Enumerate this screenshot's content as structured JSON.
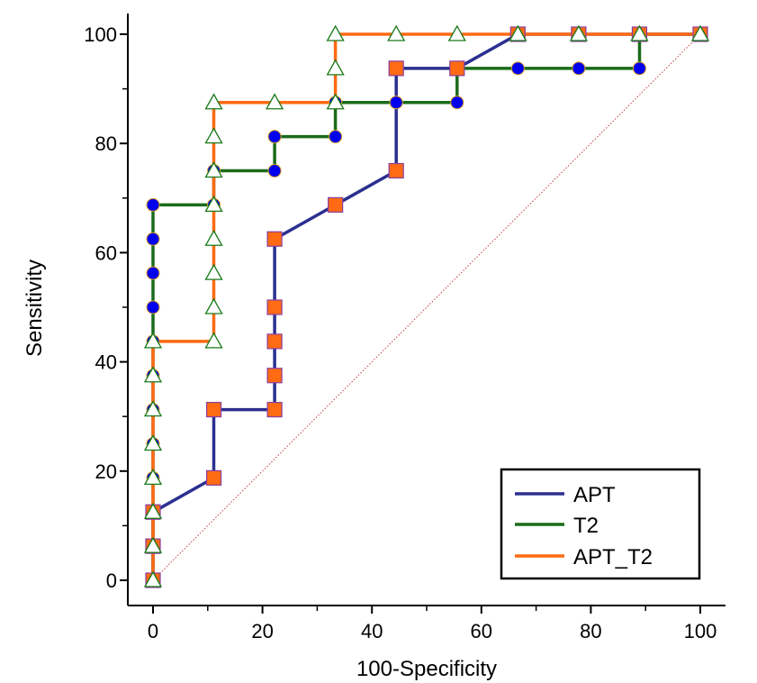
{
  "chart_data": {
    "type": "line",
    "title": "",
    "xlabel": "100-Specificity",
    "ylabel": "Sensitivity",
    "xlim": [
      0,
      100
    ],
    "ylim": [
      0,
      100
    ],
    "xticks": [
      0,
      20,
      40,
      60,
      80,
      100
    ],
    "yticks": [
      0,
      20,
      40,
      60,
      80,
      100
    ],
    "xtick_labels": [
      "0",
      "20",
      "40",
      "60",
      "80",
      "100"
    ],
    "ytick_labels": [
      "0",
      "20",
      "40",
      "60",
      "80",
      "100"
    ],
    "legend": {
      "position": "bottom-right",
      "entries": [
        "APT",
        "T2",
        "APT_T2"
      ]
    },
    "reference_line": {
      "from": [
        0,
        0
      ],
      "to": [
        100,
        100
      ],
      "style": "dotted",
      "color": "#c04040"
    },
    "series": [
      {
        "name": "T2",
        "color": "#1a6b1a",
        "marker": "circle",
        "marker_fill": "#0000ee",
        "marker_edge": "#e0a020",
        "path": [
          [
            0,
            0
          ],
          [
            0,
            68.75
          ],
          [
            11.11,
            68.75
          ],
          [
            11.11,
            75
          ],
          [
            22.22,
            75
          ],
          [
            22.22,
            81.25
          ],
          [
            33.33,
            81.25
          ],
          [
            33.33,
            87.5
          ],
          [
            55.56,
            87.5
          ],
          [
            55.56,
            93.75
          ],
          [
            88.89,
            93.75
          ],
          [
            88.89,
            100
          ],
          [
            100,
            100
          ]
        ],
        "points": [
          [
            0,
            0
          ],
          [
            0,
            6.25
          ],
          [
            0,
            12.5
          ],
          [
            0,
            18.75
          ],
          [
            0,
            25
          ],
          [
            0,
            31.25
          ],
          [
            0,
            37.5
          ],
          [
            0,
            43.75
          ],
          [
            0,
            50
          ],
          [
            0,
            56.25
          ],
          [
            0,
            62.5
          ],
          [
            0,
            68.75
          ],
          [
            11.11,
            68.75
          ],
          [
            11.11,
            75
          ],
          [
            22.22,
            75
          ],
          [
            22.22,
            81.25
          ],
          [
            33.33,
            81.25
          ],
          [
            33.33,
            87.5
          ],
          [
            44.44,
            87.5
          ],
          [
            55.56,
            87.5
          ],
          [
            55.56,
            93.75
          ],
          [
            66.67,
            93.75
          ],
          [
            77.78,
            93.75
          ],
          [
            88.89,
            93.75
          ],
          [
            88.89,
            100
          ],
          [
            100,
            100
          ]
        ]
      },
      {
        "name": "APT",
        "color": "#2b2f8f",
        "marker": "square",
        "marker_fill": "#ff6a13",
        "marker_edge": "#8a3fa0",
        "path": [
          [
            0,
            0
          ],
          [
            0,
            12.5
          ],
          [
            11.11,
            18.75
          ],
          [
            11.11,
            31.25
          ],
          [
            22.22,
            31.25
          ],
          [
            22.22,
            62.5
          ],
          [
            33.33,
            68.75
          ],
          [
            44.44,
            75
          ],
          [
            44.44,
            93.75
          ],
          [
            55.56,
            93.75
          ],
          [
            66.67,
            100
          ],
          [
            100,
            100
          ]
        ],
        "points": [
          [
            0,
            0
          ],
          [
            0,
            6.25
          ],
          [
            0,
            12.5
          ],
          [
            11.11,
            18.75
          ],
          [
            11.11,
            31.25
          ],
          [
            22.22,
            31.25
          ],
          [
            22.22,
            37.5
          ],
          [
            22.22,
            43.75
          ],
          [
            22.22,
            50
          ],
          [
            22.22,
            62.5
          ],
          [
            33.33,
            68.75
          ],
          [
            44.44,
            75
          ],
          [
            44.44,
            93.75
          ],
          [
            55.56,
            93.75
          ],
          [
            66.67,
            100
          ],
          [
            77.78,
            100
          ],
          [
            88.89,
            100
          ],
          [
            100,
            100
          ]
        ]
      },
      {
        "name": "APT_T2",
        "color": "#ff6a13",
        "marker": "triangle",
        "marker_fill": "#ffffff",
        "marker_edge": "#1a7a1a",
        "path": [
          [
            0,
            0
          ],
          [
            0,
            43.75
          ],
          [
            11.11,
            43.75
          ],
          [
            11.11,
            87.5
          ],
          [
            33.33,
            87.5
          ],
          [
            33.33,
            100
          ],
          [
            100,
            100
          ]
        ],
        "points": [
          [
            0,
            0
          ],
          [
            0,
            6.25
          ],
          [
            0,
            12.5
          ],
          [
            0,
            18.75
          ],
          [
            0,
            25
          ],
          [
            0,
            31.25
          ],
          [
            0,
            37.5
          ],
          [
            0,
            43.75
          ],
          [
            11.11,
            43.75
          ],
          [
            11.11,
            50
          ],
          [
            11.11,
            56.25
          ],
          [
            11.11,
            62.5
          ],
          [
            11.11,
            68.75
          ],
          [
            11.11,
            75
          ],
          [
            11.11,
            81.25
          ],
          [
            11.11,
            87.5
          ],
          [
            22.22,
            87.5
          ],
          [
            33.33,
            87.5
          ],
          [
            33.33,
            93.75
          ],
          [
            33.33,
            100
          ],
          [
            44.44,
            100
          ],
          [
            55.56,
            100
          ],
          [
            66.67,
            100
          ],
          [
            77.78,
            100
          ],
          [
            88.89,
            100
          ],
          [
            100,
            100
          ]
        ]
      }
    ]
  }
}
